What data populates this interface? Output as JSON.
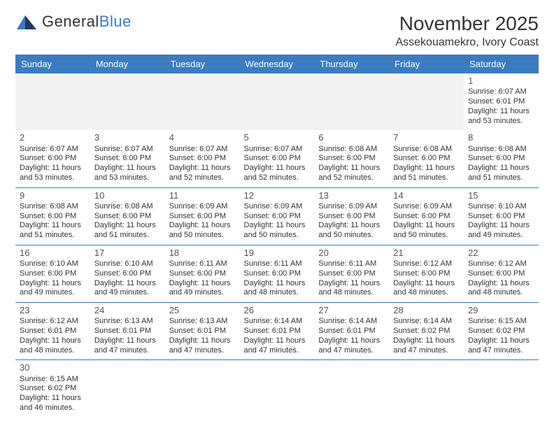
{
  "brand": {
    "word1": "General",
    "word2": "Blue"
  },
  "title": "November 2025",
  "location": "Assekouamekro, Ivory Coast",
  "colors": {
    "header_bg": "#3b7bbf",
    "header_text": "#ffffff",
    "row_border": "#3b7bbf",
    "blank_bg": "#f2f2f2",
    "page_bg": "#ffffff",
    "text": "#333333"
  },
  "typography": {
    "title_fontsize": 28,
    "location_fontsize": 16,
    "dayheader_fontsize": 13,
    "cell_fontsize": 11,
    "daynum_fontsize": 13
  },
  "table": {
    "columns": [
      "Sunday",
      "Monday",
      "Tuesday",
      "Wednesday",
      "Thursday",
      "Friday",
      "Saturday"
    ],
    "column_count": 7
  },
  "days": {
    "1": {
      "sunrise": "6:07 AM",
      "sunset": "6:01 PM",
      "daylight": "11 hours and 53 minutes."
    },
    "2": {
      "sunrise": "6:07 AM",
      "sunset": "6:00 PM",
      "daylight": "11 hours and 53 minutes."
    },
    "3": {
      "sunrise": "6:07 AM",
      "sunset": "6:00 PM",
      "daylight": "11 hours and 53 minutes."
    },
    "4": {
      "sunrise": "6:07 AM",
      "sunset": "6:00 PM",
      "daylight": "11 hours and 52 minutes."
    },
    "5": {
      "sunrise": "6:07 AM",
      "sunset": "6:00 PM",
      "daylight": "11 hours and 52 minutes."
    },
    "6": {
      "sunrise": "6:08 AM",
      "sunset": "6:00 PM",
      "daylight": "11 hours and 52 minutes."
    },
    "7": {
      "sunrise": "6:08 AM",
      "sunset": "6:00 PM",
      "daylight": "11 hours and 51 minutes."
    },
    "8": {
      "sunrise": "6:08 AM",
      "sunset": "6:00 PM",
      "daylight": "11 hours and 51 minutes."
    },
    "9": {
      "sunrise": "6:08 AM",
      "sunset": "6:00 PM",
      "daylight": "11 hours and 51 minutes."
    },
    "10": {
      "sunrise": "6:08 AM",
      "sunset": "6:00 PM",
      "daylight": "11 hours and 51 minutes."
    },
    "11": {
      "sunrise": "6:09 AM",
      "sunset": "6:00 PM",
      "daylight": "11 hours and 50 minutes."
    },
    "12": {
      "sunrise": "6:09 AM",
      "sunset": "6:00 PM",
      "daylight": "11 hours and 50 minutes."
    },
    "13": {
      "sunrise": "6:09 AM",
      "sunset": "6:00 PM",
      "daylight": "11 hours and 50 minutes."
    },
    "14": {
      "sunrise": "6:09 AM",
      "sunset": "6:00 PM",
      "daylight": "11 hours and 50 minutes."
    },
    "15": {
      "sunrise": "6:10 AM",
      "sunset": "6:00 PM",
      "daylight": "11 hours and 49 minutes."
    },
    "16": {
      "sunrise": "6:10 AM",
      "sunset": "6:00 PM",
      "daylight": "11 hours and 49 minutes."
    },
    "17": {
      "sunrise": "6:10 AM",
      "sunset": "6:00 PM",
      "daylight": "11 hours and 49 minutes."
    },
    "18": {
      "sunrise": "6:11 AM",
      "sunset": "6:00 PM",
      "daylight": "11 hours and 49 minutes."
    },
    "19": {
      "sunrise": "6:11 AM",
      "sunset": "6:00 PM",
      "daylight": "11 hours and 48 minutes."
    },
    "20": {
      "sunrise": "6:11 AM",
      "sunset": "6:00 PM",
      "daylight": "11 hours and 48 minutes."
    },
    "21": {
      "sunrise": "6:12 AM",
      "sunset": "6:00 PM",
      "daylight": "11 hours and 48 minutes."
    },
    "22": {
      "sunrise": "6:12 AM",
      "sunset": "6:00 PM",
      "daylight": "11 hours and 48 minutes."
    },
    "23": {
      "sunrise": "6:12 AM",
      "sunset": "6:01 PM",
      "daylight": "11 hours and 48 minutes."
    },
    "24": {
      "sunrise": "6:13 AM",
      "sunset": "6:01 PM",
      "daylight": "11 hours and 47 minutes."
    },
    "25": {
      "sunrise": "6:13 AM",
      "sunset": "6:01 PM",
      "daylight": "11 hours and 47 minutes."
    },
    "26": {
      "sunrise": "6:14 AM",
      "sunset": "6:01 PM",
      "daylight": "11 hours and 47 minutes."
    },
    "27": {
      "sunrise": "6:14 AM",
      "sunset": "6:01 PM",
      "daylight": "11 hours and 47 minutes."
    },
    "28": {
      "sunrise": "6:14 AM",
      "sunset": "6:02 PM",
      "daylight": "11 hours and 47 minutes."
    },
    "29": {
      "sunrise": "6:15 AM",
      "sunset": "6:02 PM",
      "daylight": "11 hours and 47 minutes."
    },
    "30": {
      "sunrise": "6:15 AM",
      "sunset": "6:02 PM",
      "daylight": "11 hours and 46 minutes."
    }
  },
  "labels": {
    "sunrise": "Sunrise: ",
    "sunset": "Sunset: ",
    "daylight": "Daylight: "
  },
  "layout": {
    "first_day_column": 6,
    "rows": [
      [
        null,
        null,
        null,
        null,
        null,
        null,
        "1"
      ],
      [
        "2",
        "3",
        "4",
        "5",
        "6",
        "7",
        "8"
      ],
      [
        "9",
        "10",
        "11",
        "12",
        "13",
        "14",
        "15"
      ],
      [
        "16",
        "17",
        "18",
        "19",
        "20",
        "21",
        "22"
      ],
      [
        "23",
        "24",
        "25",
        "26",
        "27",
        "28",
        "29"
      ],
      [
        "30",
        null,
        null,
        null,
        null,
        null,
        null
      ]
    ]
  }
}
